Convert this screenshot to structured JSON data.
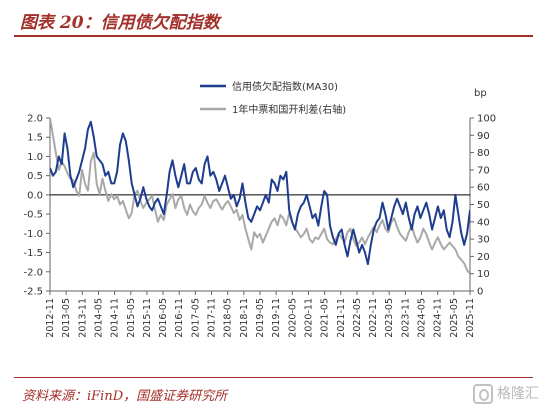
{
  "page": {
    "title": "图表 20：信用债欠配指数",
    "source": "资料来源：iFinD，国盛证券研究所",
    "watermark": "格隆汇",
    "colors": {
      "brand": "#a3302a",
      "series_primary": "#1f3d8f",
      "series_secondary": "#a9a9a9"
    }
  },
  "chart_data": {
    "type": "line",
    "ylabel_right": "bp",
    "y_left": {
      "lim": [
        -2.5,
        2.0
      ],
      "ticks": [
        "2.0",
        "1.5",
        "1.0",
        "0.5",
        "0.0",
        "-0.5",
        "-1.0",
        "-1.5",
        "-2.0",
        "-2.5"
      ]
    },
    "y_right": {
      "lim": [
        0,
        100
      ],
      "ticks": [
        "100",
        "90",
        "80",
        "70",
        "60",
        "50",
        "40",
        "30",
        "20",
        "10",
        "0"
      ]
    },
    "x_ticks": [
      "2012-11",
      "2013-05",
      "2013-11",
      "2014-05",
      "2014-11",
      "2015-05",
      "2015-11",
      "2016-05",
      "2016-11",
      "2017-05",
      "2017-11",
      "2018-05",
      "2018-11",
      "2019-05",
      "2019-11",
      "2020-05",
      "2020-11",
      "2021-05",
      "2021-11",
      "2022-05",
      "2022-11",
      "2023-05",
      "2023-11",
      "2024-05",
      "2024-11",
      "2025-05",
      "2025-11"
    ],
    "grid": false,
    "legend_position": "top-center",
    "zero_line": true,
    "series": [
      {
        "name": "信用债欠配指数(MA30)",
        "axis": "left",
        "points": [
          [
            0,
            0.7
          ],
          [
            0.5,
            0.5
          ],
          [
            1,
            0.6
          ],
          [
            1.5,
            1.0
          ],
          [
            2,
            0.8
          ],
          [
            2.5,
            1.6
          ],
          [
            3,
            1.2
          ],
          [
            3.5,
            0.5
          ],
          [
            4,
            0.2
          ],
          [
            4.5,
            0.4
          ],
          [
            5,
            0.6
          ],
          [
            5.5,
            0.9
          ],
          [
            6,
            1.2
          ],
          [
            6.5,
            1.7
          ],
          [
            7,
            1.9
          ],
          [
            7.5,
            1.5
          ],
          [
            8,
            1.0
          ],
          [
            8.5,
            0.9
          ],
          [
            9,
            0.8
          ],
          [
            9.5,
            0.5
          ],
          [
            10,
            0.6
          ],
          [
            10.5,
            0.3
          ],
          [
            11,
            0.3
          ],
          [
            11.5,
            0.6
          ],
          [
            12,
            1.3
          ],
          [
            12.5,
            1.6
          ],
          [
            13,
            1.4
          ],
          [
            13.5,
            0.9
          ],
          [
            14,
            0.3
          ],
          [
            14.5,
            0.0
          ],
          [
            15,
            -0.3
          ],
          [
            15.5,
            -0.1
          ],
          [
            16,
            0.2
          ],
          [
            16.5,
            -0.1
          ],
          [
            17,
            -0.3
          ],
          [
            17.5,
            -0.4
          ],
          [
            18,
            -0.2
          ],
          [
            18.5,
            -0.1
          ],
          [
            19,
            -0.3
          ],
          [
            19.5,
            -0.5
          ],
          [
            20,
            0.0
          ],
          [
            20.5,
            0.6
          ],
          [
            21,
            0.9
          ],
          [
            21.5,
            0.5
          ],
          [
            22,
            0.2
          ],
          [
            22.5,
            0.5
          ],
          [
            23,
            0.8
          ],
          [
            23.5,
            0.3
          ],
          [
            24,
            0.3
          ],
          [
            24.5,
            0.6
          ],
          [
            25,
            0.7
          ],
          [
            25.5,
            0.4
          ],
          [
            26,
            0.3
          ],
          [
            26.5,
            0.8
          ],
          [
            27,
            1.0
          ],
          [
            27.5,
            0.5
          ],
          [
            28,
            0.6
          ],
          [
            28.5,
            0.4
          ],
          [
            29,
            0.1
          ],
          [
            29.5,
            0.3
          ],
          [
            30,
            0.5
          ],
          [
            30.5,
            0.2
          ],
          [
            31,
            -0.1
          ],
          [
            31.5,
            0.0
          ],
          [
            32,
            -0.3
          ],
          [
            32.5,
            -0.1
          ],
          [
            33,
            0.3
          ],
          [
            33.5,
            -0.2
          ],
          [
            34,
            -0.6
          ],
          [
            34.5,
            -0.7
          ],
          [
            35,
            -0.5
          ],
          [
            35.5,
            -0.3
          ],
          [
            36,
            -0.4
          ],
          [
            36.5,
            -0.2
          ],
          [
            37,
            0.0
          ],
          [
            37.5,
            -0.2
          ],
          [
            38,
            0.4
          ],
          [
            38.5,
            0.3
          ],
          [
            39,
            0.1
          ],
          [
            39.5,
            0.5
          ],
          [
            40,
            0.4
          ],
          [
            40.5,
            0.6
          ],
          [
            41,
            -0.4
          ],
          [
            41.5,
            -0.7
          ],
          [
            42,
            -0.9
          ],
          [
            42.5,
            -0.5
          ],
          [
            43,
            -0.3
          ],
          [
            43.5,
            -0.2
          ],
          [
            44,
            0.0
          ],
          [
            44.5,
            -0.3
          ],
          [
            45,
            -0.6
          ],
          [
            45.5,
            -0.5
          ],
          [
            46,
            -0.8
          ],
          [
            46.5,
            -0.3
          ],
          [
            47,
            0.1
          ],
          [
            47.5,
            0.0
          ],
          [
            48,
            -0.8
          ],
          [
            48.5,
            -1.1
          ],
          [
            49,
            -1.3
          ],
          [
            49.5,
            -1.0
          ],
          [
            50,
            -0.9
          ],
          [
            50.5,
            -1.3
          ],
          [
            51,
            -1.6
          ],
          [
            51.5,
            -1.2
          ],
          [
            52,
            -0.9
          ],
          [
            52.5,
            -1.2
          ],
          [
            53,
            -1.5
          ],
          [
            53.5,
            -1.3
          ],
          [
            54,
            -1.5
          ],
          [
            54.5,
            -1.8
          ],
          [
            55,
            -1.3
          ],
          [
            55.5,
            -0.9
          ],
          [
            56,
            -0.7
          ],
          [
            56.5,
            -0.6
          ],
          [
            57,
            -0.2
          ],
          [
            57.5,
            -0.5
          ],
          [
            58,
            -0.9
          ],
          [
            58.5,
            -0.6
          ],
          [
            59,
            -0.3
          ],
          [
            59.5,
            -0.1
          ],
          [
            60,
            -0.3
          ],
          [
            60.5,
            -0.5
          ],
          [
            61,
            -0.2
          ],
          [
            61.5,
            -0.6
          ],
          [
            62,
            -0.9
          ],
          [
            62.5,
            -0.5
          ],
          [
            63,
            -0.3
          ],
          [
            63.5,
            -0.6
          ],
          [
            64,
            -0.4
          ],
          [
            64.5,
            -0.2
          ],
          [
            65,
            -0.5
          ],
          [
            65.5,
            -0.9
          ],
          [
            66,
            -0.6
          ],
          [
            66.5,
            -0.3
          ],
          [
            67,
            -0.6
          ],
          [
            67.5,
            -0.4
          ],
          [
            68,
            -0.9
          ],
          [
            68.5,
            -1.1
          ],
          [
            69,
            -0.7
          ],
          [
            69.5,
            0.0
          ],
          [
            70,
            -0.5
          ],
          [
            70.5,
            -1.0
          ],
          [
            71,
            -1.3
          ],
          [
            71.5,
            -1.0
          ],
          [
            72,
            -0.4
          ]
        ]
      },
      {
        "name": "1年中票和国开利差(右轴)",
        "axis": "right",
        "points": [
          [
            0,
            100
          ],
          [
            0.5,
            90
          ],
          [
            1,
            80
          ],
          [
            1.5,
            70
          ],
          [
            2,
            75
          ],
          [
            2.5,
            72
          ],
          [
            3,
            68
          ],
          [
            3.5,
            65
          ],
          [
            4,
            64
          ],
          [
            4.5,
            58
          ],
          [
            5,
            55
          ],
          [
            5.5,
            70
          ],
          [
            6,
            62
          ],
          [
            6.5,
            58
          ],
          [
            7,
            75
          ],
          [
            7.5,
            80
          ],
          [
            8,
            62
          ],
          [
            8.5,
            56
          ],
          [
            9,
            65
          ],
          [
            9.5,
            58
          ],
          [
            10,
            52
          ],
          [
            10.5,
            56
          ],
          [
            11,
            53
          ],
          [
            11.5,
            55
          ],
          [
            12,
            50
          ],
          [
            12.5,
            52
          ],
          [
            13,
            47
          ],
          [
            13.5,
            42
          ],
          [
            14,
            45
          ],
          [
            14.5,
            56
          ],
          [
            15,
            58
          ],
          [
            15.5,
            52
          ],
          [
            16,
            48
          ],
          [
            16.5,
            51
          ],
          [
            17,
            53
          ],
          [
            17.5,
            55
          ],
          [
            18,
            47
          ],
          [
            18.5,
            40
          ],
          [
            19,
            44
          ],
          [
            19.5,
            41
          ],
          [
            20,
            50
          ],
          [
            20.5,
            53
          ],
          [
            21,
            56
          ],
          [
            21.5,
            48
          ],
          [
            22,
            53
          ],
          [
            22.5,
            55
          ],
          [
            23,
            48
          ],
          [
            23.5,
            44
          ],
          [
            24,
            50
          ],
          [
            24.5,
            46
          ],
          [
            25,
            44
          ],
          [
            25.5,
            48
          ],
          [
            26,
            50
          ],
          [
            26.5,
            55
          ],
          [
            27,
            51
          ],
          [
            27.5,
            48
          ],
          [
            28,
            52
          ],
          [
            28.5,
            53
          ],
          [
            29,
            50
          ],
          [
            29.5,
            47
          ],
          [
            30,
            50
          ],
          [
            30.5,
            52
          ],
          [
            31,
            49
          ],
          [
            31.5,
            45
          ],
          [
            32,
            47
          ],
          [
            32.5,
            41
          ],
          [
            33,
            44
          ],
          [
            33.5,
            36
          ],
          [
            34,
            30
          ],
          [
            34.5,
            24
          ],
          [
            35,
            34
          ],
          [
            35.5,
            31
          ],
          [
            36,
            33
          ],
          [
            36.5,
            28
          ],
          [
            37,
            32
          ],
          [
            37.5,
            36
          ],
          [
            38,
            40
          ],
          [
            38.5,
            42
          ],
          [
            39,
            38
          ],
          [
            39.5,
            44
          ],
          [
            40,
            42
          ],
          [
            40.5,
            38
          ],
          [
            41,
            45
          ],
          [
            41.5,
            40
          ],
          [
            42,
            36
          ],
          [
            42.5,
            34
          ],
          [
            43,
            31
          ],
          [
            43.5,
            33
          ],
          [
            44,
            36
          ],
          [
            44.5,
            30
          ],
          [
            45,
            28
          ],
          [
            45.5,
            31
          ],
          [
            46,
            30
          ],
          [
            46.5,
            33
          ],
          [
            47,
            36
          ],
          [
            47.5,
            30
          ],
          [
            48,
            28
          ],
          [
            48.5,
            27
          ],
          [
            49,
            30
          ],
          [
            49.5,
            33
          ],
          [
            50,
            31
          ],
          [
            50.5,
            28
          ],
          [
            51,
            34
          ],
          [
            51.5,
            36
          ],
          [
            52,
            30
          ],
          [
            52.5,
            26
          ],
          [
            53,
            28
          ],
          [
            53.5,
            31
          ],
          [
            54,
            27
          ],
          [
            54.5,
            31
          ],
          [
            55,
            34
          ],
          [
            55.5,
            37
          ],
          [
            56,
            34
          ],
          [
            56.5,
            38
          ],
          [
            57,
            41
          ],
          [
            57.5,
            36
          ],
          [
            58,
            34
          ],
          [
            58.5,
            40
          ],
          [
            59,
            42
          ],
          [
            59.5,
            37
          ],
          [
            60,
            33
          ],
          [
            60.5,
            31
          ],
          [
            61,
            29
          ],
          [
            61.5,
            34
          ],
          [
            62,
            38
          ],
          [
            62.5,
            32
          ],
          [
            63,
            28
          ],
          [
            63.5,
            31
          ],
          [
            64,
            36
          ],
          [
            64.5,
            33
          ],
          [
            65,
            28
          ],
          [
            65.5,
            24
          ],
          [
            66,
            28
          ],
          [
            66.5,
            31
          ],
          [
            67,
            27
          ],
          [
            67.5,
            24
          ],
          [
            68,
            26
          ],
          [
            68.5,
            28
          ],
          [
            69,
            26
          ],
          [
            69.5,
            24
          ],
          [
            70,
            20
          ],
          [
            70.5,
            18
          ],
          [
            71,
            16
          ],
          [
            71.5,
            12
          ],
          [
            72,
            10
          ]
        ]
      }
    ]
  }
}
